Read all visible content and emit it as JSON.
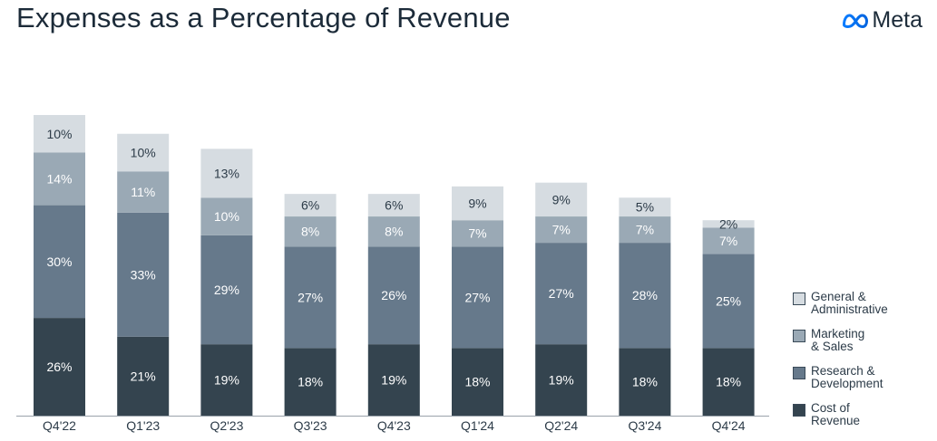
{
  "header": {
    "title": "Expenses as a Percentage of Revenue",
    "logo_text": "Meta",
    "logo_icon": "meta-infinity-icon"
  },
  "legend": [
    {
      "label": "General &\nAdministrative",
      "color": "#d6dce1"
    },
    {
      "label": "Marketing\n& Sales",
      "color": "#9aa9b5"
    },
    {
      "label": "Research &\nDevelopment",
      "color": "#66798b"
    },
    {
      "label": "Cost of\nRevenue",
      "color": "#34444f"
    }
  ],
  "chart_data": {
    "type": "bar",
    "stacked": true,
    "title": "Expenses as a Percentage of Revenue",
    "xlabel": "",
    "ylabel": "",
    "categories": [
      "Q4'22",
      "Q1'23",
      "Q2'23",
      "Q3'23",
      "Q4'23",
      "Q1'24",
      "Q2'24",
      "Q3'24",
      "Q4'24"
    ],
    "series": [
      {
        "name": "Cost of Revenue",
        "color": "#34444f",
        "text_color": "#ffffff",
        "values": [
          26,
          21,
          19,
          18,
          19,
          18,
          19,
          18,
          18
        ]
      },
      {
        "name": "Research & Development",
        "color": "#66798b",
        "text_color": "#ffffff",
        "values": [
          30,
          33,
          29,
          27,
          26,
          27,
          27,
          28,
          25
        ]
      },
      {
        "name": "Marketing & Sales",
        "color": "#9aa9b5",
        "text_color": "#ffffff",
        "values": [
          14,
          11,
          10,
          8,
          8,
          7,
          7,
          7,
          7
        ]
      },
      {
        "name": "General & Administrative",
        "color": "#d6dce1",
        "text_color": "#2c3b48",
        "values": [
          10,
          10,
          13,
          6,
          6,
          9,
          9,
          5,
          2
        ]
      }
    ],
    "value_suffix": "%",
    "legend_position": "bottom-right",
    "grid": false
  }
}
